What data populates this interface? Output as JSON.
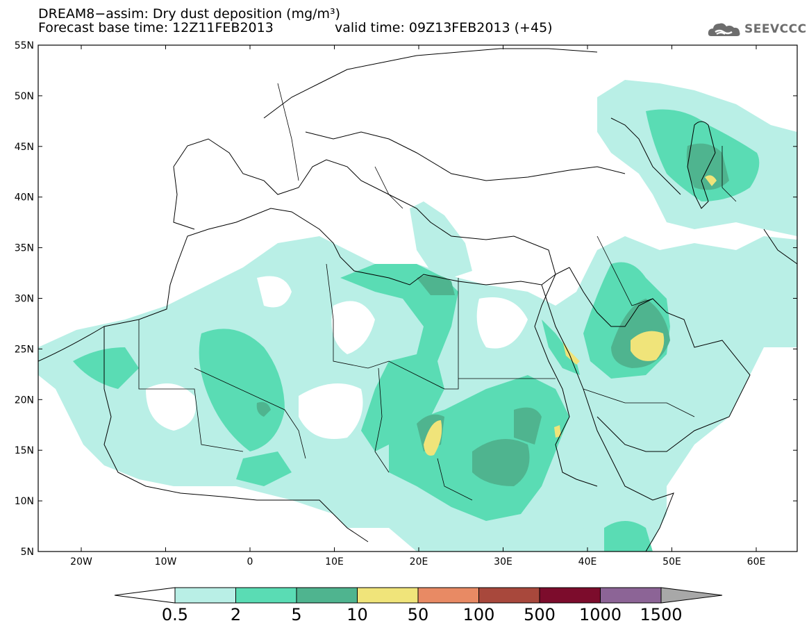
{
  "title": {
    "line1": "DREAM8−assim: Dry dust deposition (mg/m³)",
    "line2": "Forecast base time: 12Z11FEB2013",
    "valid": "valid time: 09Z13FEB2013 (+45)"
  },
  "logo": {
    "name": "SEEVCCC",
    "icon": "cloud-logo-icon"
  },
  "axes": {
    "lat_labels": [
      "55N",
      "50N",
      "45N",
      "40N",
      "35N",
      "30N",
      "25N",
      "20N",
      "15N",
      "10N",
      "5N"
    ],
    "lon_labels": [
      "20W",
      "10W",
      "0",
      "10E",
      "20E",
      "30E",
      "40E",
      "50E",
      "60E"
    ]
  },
  "colorbar": {
    "labels": [
      "0.5",
      "2",
      "5",
      "10",
      "50",
      "100",
      "500",
      "1000",
      "1500"
    ],
    "colors": [
      "#b9efe6",
      "#5adcb4",
      "#4fb48f",
      "#f0e47a",
      "#e88a64",
      "#a8483c",
      "#7c0c2c",
      "#8c6496",
      "#a8a8a8"
    ]
  }
}
